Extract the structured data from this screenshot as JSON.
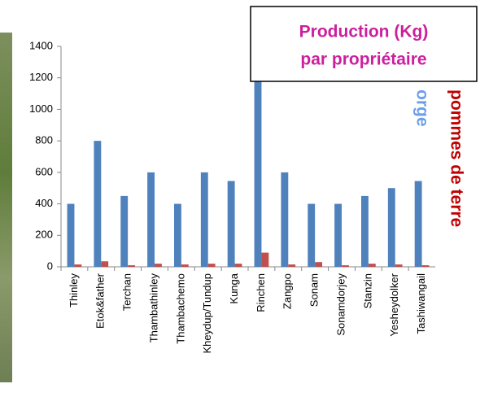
{
  "chart_data": {
    "type": "bar",
    "title": [
      "Production (Kg)",
      "par propriétaire"
    ],
    "categories": [
      "Thinley",
      "Etok&father",
      "Terchan",
      "Thambathinley",
      "Thambachemo",
      "Kheydup/Tundup",
      "Kunga",
      "Rinchen",
      "Zangpo",
      "Sonam",
      "Sonamdorjey",
      "Stanzin",
      "Yesheydolker",
      "Tashiwangail"
    ],
    "series": [
      {
        "name": "orge",
        "color": "#4f81bd",
        "values": [
          400,
          800,
          450,
          600,
          400,
          600,
          545,
          1200,
          600,
          400,
          400,
          450,
          500,
          545
        ]
      },
      {
        "name": "pommes de terre",
        "color": "#c0504d",
        "values": [
          15,
          35,
          10,
          20,
          15,
          20,
          20,
          90,
          15,
          30,
          10,
          20,
          15,
          10
        ]
      }
    ],
    "ylim": [
      0,
      1400
    ],
    "yticks": [
      0,
      200,
      400,
      600,
      800,
      1000,
      1200,
      1400
    ]
  }
}
